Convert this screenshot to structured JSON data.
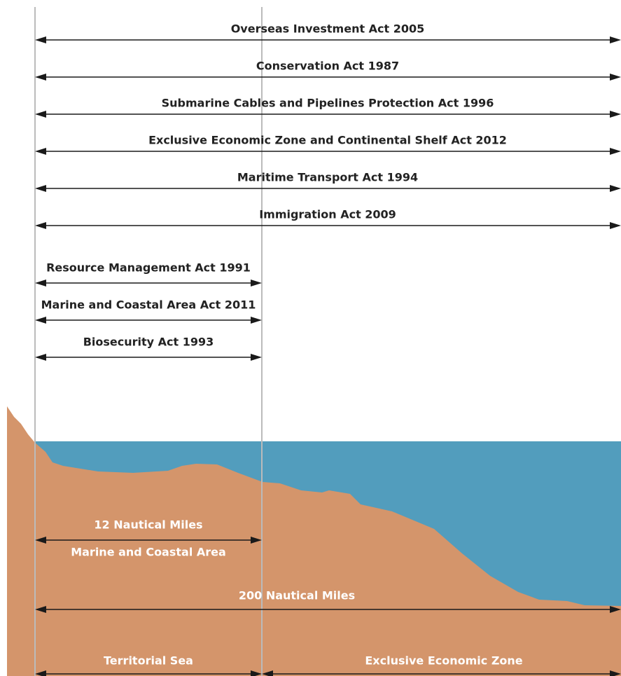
{
  "whole_zone_acts": [
    "Overseas Investment Act 2005",
    "Conservation Act 1987",
    "Submarine Cables and Pipelines Protection Act 1996",
    "Exclusive Economic Zone and Continental Shelf Act 2012",
    "Maritime Transport Act 1994",
    "Immigration Act 2009"
  ],
  "territorial_acts": [
    "Resource Management Act 1991",
    "Marine and Coastal Area Act 2011",
    "Biosecurity Act 1993"
  ],
  "marine_area": {
    "distance": "12 Nautical Miles",
    "label": "Marine and Coastal Area"
  },
  "eez": {
    "distance": "200 Nautical Miles"
  },
  "zones": [
    "Territorial Sea",
    "Exclusive Economic Zone"
  ]
}
